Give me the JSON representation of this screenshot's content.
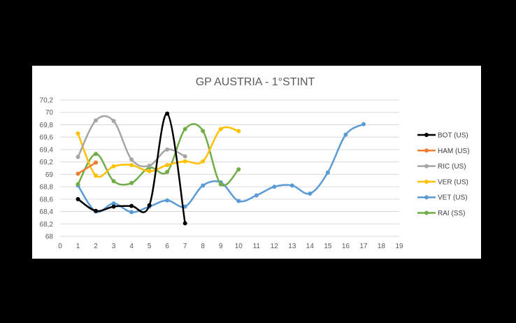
{
  "chart_data": {
    "type": "line",
    "title": "GP AUSTRIA - 1°STINT",
    "xlabel": "",
    "ylabel": "",
    "xlim": [
      0,
      19
    ],
    "ylim": [
      68,
      70.2
    ],
    "x_ticks": [
      "0",
      "1",
      "2",
      "3",
      "4",
      "5",
      "6",
      "7",
      "8",
      "9",
      "10",
      "11",
      "12",
      "13",
      "14",
      "15",
      "16",
      "17",
      "18",
      "19"
    ],
    "y_ticks": [
      "68",
      "68,2",
      "68,4",
      "68,6",
      "68,8",
      "69",
      "69,2",
      "69,4",
      "69,6",
      "69,8",
      "70",
      "70,2"
    ],
    "grid": "horizontal",
    "legend_position": "right",
    "smooth": true,
    "series": [
      {
        "name": "BOT (US)",
        "color": "#000000",
        "x": [
          1,
          2,
          3,
          4,
          5,
          6,
          7
        ],
        "y": [
          68.6,
          68.41,
          68.48,
          68.49,
          68.5,
          69.98,
          68.21
        ]
      },
      {
        "name": "HAM (US)",
        "color": "#ed7d31",
        "x": [
          1,
          2
        ],
        "y": [
          69.01,
          69.19
        ]
      },
      {
        "name": "RIC (US)",
        "color": "#a5a5a5",
        "x": [
          1,
          2,
          3,
          4,
          5,
          6,
          7
        ],
        "y": [
          69.28,
          69.87,
          69.86,
          69.24,
          69.14,
          69.4,
          69.29
        ]
      },
      {
        "name": "VER (US)",
        "color": "#ffc000",
        "x": [
          1,
          2,
          3,
          4,
          5,
          6,
          7,
          8,
          9,
          10
        ],
        "y": [
          69.66,
          68.98,
          69.13,
          69.15,
          69.05,
          69.15,
          69.21,
          69.21,
          69.73,
          69.7
        ]
      },
      {
        "name": "VET (US)",
        "color": "#5b9bd5",
        "x": [
          1,
          2,
          3,
          4,
          5,
          6,
          7,
          8,
          9,
          10,
          11,
          12,
          13,
          14,
          15,
          16,
          17
        ],
        "y": [
          68.82,
          68.4,
          68.53,
          68.39,
          68.48,
          68.58,
          68.48,
          68.82,
          68.87,
          68.57,
          68.66,
          68.8,
          68.82,
          68.69,
          69.03,
          69.64,
          69.81
        ]
      },
      {
        "name": "RAI (SS)",
        "color": "#70ad47",
        "x": [
          1,
          2,
          3,
          4,
          5,
          6,
          7,
          8,
          9,
          10
        ],
        "y": [
          68.84,
          69.33,
          68.89,
          68.86,
          69.11,
          69.04,
          69.73,
          69.7,
          68.84,
          69.08
        ]
      }
    ]
  }
}
